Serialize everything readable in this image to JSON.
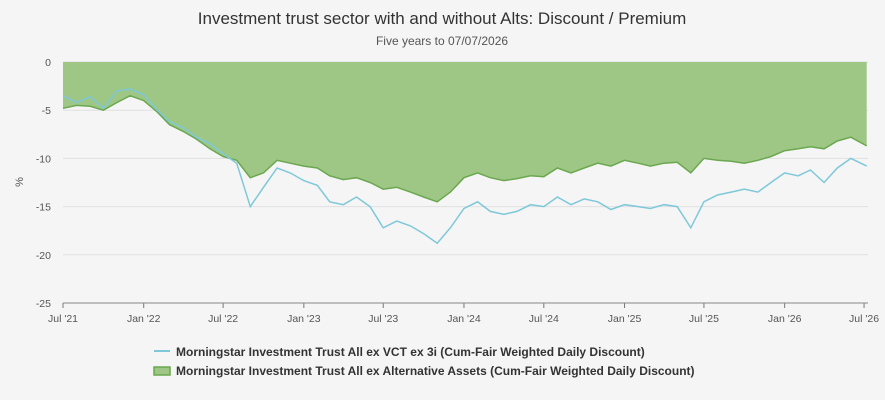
{
  "chart_data": {
    "type": "area",
    "title": "Investment trust sector with and without Alts: Discount / Premium",
    "subtitle": "Five years to 07/07/2026",
    "xlabel": "",
    "ylabel": "%",
    "ylim": [
      -25,
      0
    ],
    "yticks": [
      0,
      -5,
      -10,
      -15,
      -20,
      -25
    ],
    "xlim": [
      "2021-07-01",
      "2026-07-10"
    ],
    "xticks": [
      {
        "date": "2021-07-01",
        "label": "Jul '21"
      },
      {
        "date": "2022-01-01",
        "label": "Jan '22"
      },
      {
        "date": "2022-07-01",
        "label": "Jul '22"
      },
      {
        "date": "2023-01-01",
        "label": "Jan '23"
      },
      {
        "date": "2023-07-01",
        "label": "Jul '23"
      },
      {
        "date": "2024-01-01",
        "label": "Jan '24"
      },
      {
        "date": "2024-07-01",
        "label": "Jul '24"
      },
      {
        "date": "2025-01-01",
        "label": "Jan '25"
      },
      {
        "date": "2025-07-01",
        "label": "Jul '25"
      },
      {
        "date": "2026-01-01",
        "label": "Jan '26"
      },
      {
        "date": "2026-07-01",
        "label": "Jul '26"
      }
    ],
    "grid": true,
    "legend_position": "bottom",
    "colors": {
      "series1": "#7ec8d9",
      "series2_fill": "#9ec785",
      "series2_line": "#6aa84f",
      "grid": "#e0e0e0",
      "axis": "#555555"
    },
    "series": [
      {
        "name": "Morningstar Investment Trust All ex VCT ex 3i (Cum-Fair Weighted Daily Discount)",
        "style": "line",
        "x": [
          "2021-07-01",
          "2021-08-01",
          "2021-09-01",
          "2021-10-01",
          "2021-11-01",
          "2021-12-01",
          "2022-01-01",
          "2022-02-01",
          "2022-03-01",
          "2022-04-01",
          "2022-05-01",
          "2022-06-01",
          "2022-07-01",
          "2022-08-01",
          "2022-09-01",
          "2022-10-01",
          "2022-11-01",
          "2022-12-01",
          "2023-01-01",
          "2023-02-01",
          "2023-03-01",
          "2023-04-01",
          "2023-05-01",
          "2023-06-01",
          "2023-07-01",
          "2023-08-01",
          "2023-09-01",
          "2023-10-01",
          "2023-11-01",
          "2023-12-01",
          "2024-01-01",
          "2024-02-01",
          "2024-03-01",
          "2024-04-01",
          "2024-05-01",
          "2024-06-01",
          "2024-07-01",
          "2024-08-01",
          "2024-09-01",
          "2024-10-01",
          "2024-11-01",
          "2024-12-01",
          "2025-01-01",
          "2025-02-01",
          "2025-03-01",
          "2025-04-01",
          "2025-05-01",
          "2025-06-01",
          "2025-07-01",
          "2025-08-01",
          "2025-09-01",
          "2025-10-01",
          "2025-11-01",
          "2025-12-01",
          "2026-01-01",
          "2026-02-01",
          "2026-03-01",
          "2026-04-01",
          "2026-05-01",
          "2026-06-01",
          "2026-07-07"
        ],
        "values": [
          -3.5,
          -4.2,
          -3.6,
          -4.8,
          -3.0,
          -2.8,
          -3.4,
          -5.0,
          -6.2,
          -6.8,
          -7.8,
          -8.5,
          -9.5,
          -10.5,
          -15.0,
          -13.0,
          -11.0,
          -11.5,
          -12.3,
          -12.8,
          -14.5,
          -14.8,
          -14.0,
          -15.0,
          -17.2,
          -16.5,
          -17.0,
          -17.8,
          -18.8,
          -17.2,
          -15.2,
          -14.5,
          -15.5,
          -15.8,
          -15.5,
          -14.8,
          -15.0,
          -14.0,
          -14.8,
          -14.2,
          -14.5,
          -15.3,
          -14.8,
          -15.0,
          -15.2,
          -14.8,
          -15.0,
          -17.2,
          -14.5,
          -13.8,
          -13.5,
          -13.2,
          -13.5,
          -12.5,
          -11.5,
          -11.8,
          -11.2,
          -12.5,
          -11.0,
          -10.0,
          -10.8
        ]
      },
      {
        "name": "Morningstar Investment Trust All ex Alternative Assets (Cum-Fair Weighted Daily Discount)",
        "style": "area",
        "x": [
          "2021-07-01",
          "2021-08-01",
          "2021-09-01",
          "2021-10-01",
          "2021-11-01",
          "2021-12-01",
          "2022-01-01",
          "2022-02-01",
          "2022-03-01",
          "2022-04-01",
          "2022-05-01",
          "2022-06-01",
          "2022-07-01",
          "2022-08-01",
          "2022-09-01",
          "2022-10-01",
          "2022-11-01",
          "2022-12-01",
          "2023-01-01",
          "2023-02-01",
          "2023-03-01",
          "2023-04-01",
          "2023-05-01",
          "2023-06-01",
          "2023-07-01",
          "2023-08-01",
          "2023-09-01",
          "2023-10-01",
          "2023-11-01",
          "2023-12-01",
          "2024-01-01",
          "2024-02-01",
          "2024-03-01",
          "2024-04-01",
          "2024-05-01",
          "2024-06-01",
          "2024-07-01",
          "2024-08-01",
          "2024-09-01",
          "2024-10-01",
          "2024-11-01",
          "2024-12-01",
          "2025-01-01",
          "2025-02-01",
          "2025-03-01",
          "2025-04-01",
          "2025-05-01",
          "2025-06-01",
          "2025-07-01",
          "2025-08-01",
          "2025-09-01",
          "2025-10-01",
          "2025-11-01",
          "2025-12-01",
          "2026-01-01",
          "2026-02-01",
          "2026-03-01",
          "2026-04-01",
          "2026-05-01",
          "2026-06-01",
          "2026-07-07"
        ],
        "values": [
          -4.8,
          -4.5,
          -4.6,
          -5.0,
          -4.2,
          -3.5,
          -4.0,
          -5.2,
          -6.5,
          -7.2,
          -8.0,
          -9.0,
          -9.8,
          -10.2,
          -12.0,
          -11.5,
          -10.2,
          -10.5,
          -10.8,
          -11.0,
          -11.8,
          -12.2,
          -12.0,
          -12.5,
          -13.2,
          -13.0,
          -13.5,
          -14.0,
          -14.5,
          -13.5,
          -12.0,
          -11.5,
          -12.0,
          -12.3,
          -12.1,
          -11.8,
          -11.9,
          -11.0,
          -11.5,
          -11.0,
          -10.5,
          -10.8,
          -10.2,
          -10.5,
          -10.8,
          -10.5,
          -10.4,
          -11.5,
          -10.0,
          -10.2,
          -10.3,
          -10.5,
          -10.2,
          -9.8,
          -9.2,
          -9.0,
          -8.8,
          -9.0,
          -8.2,
          -7.8,
          -8.7
        ]
      }
    ]
  }
}
